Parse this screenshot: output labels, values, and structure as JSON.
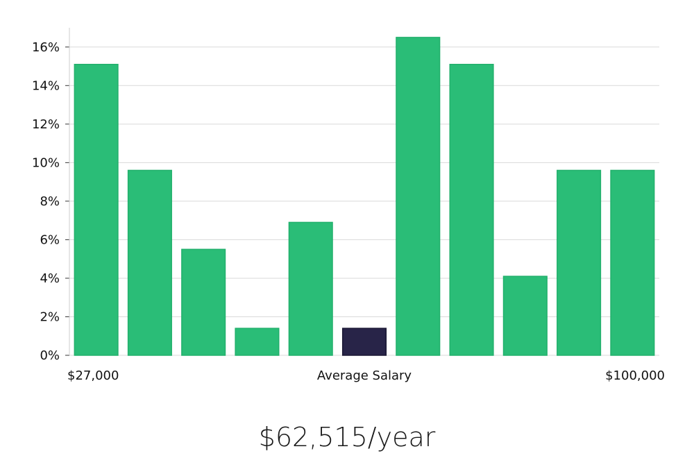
{
  "chart_data": {
    "type": "bar",
    "categories": [
      "1",
      "2",
      "3",
      "4",
      "5",
      "6",
      "7",
      "8",
      "9",
      "10",
      "11"
    ],
    "values": [
      15.1,
      9.6,
      5.5,
      1.4,
      6.9,
      1.4,
      16.5,
      15.1,
      4.1,
      9.6,
      9.6
    ],
    "highlight_index": 5,
    "ylim": [
      0,
      17
    ],
    "yticks": [
      0,
      2,
      4,
      6,
      8,
      10,
      12,
      14,
      16
    ],
    "ytick_format": "%",
    "x_min_label": "$27,000",
    "x_max_label": "$100,000",
    "xlabel": "Average Salary",
    "grid": true,
    "colors": {
      "bar": "#2abd77",
      "highlight": "#282448",
      "grid": "#d9d9d9",
      "axis": "#cccccc"
    }
  },
  "salary_text": "$62,515/year"
}
